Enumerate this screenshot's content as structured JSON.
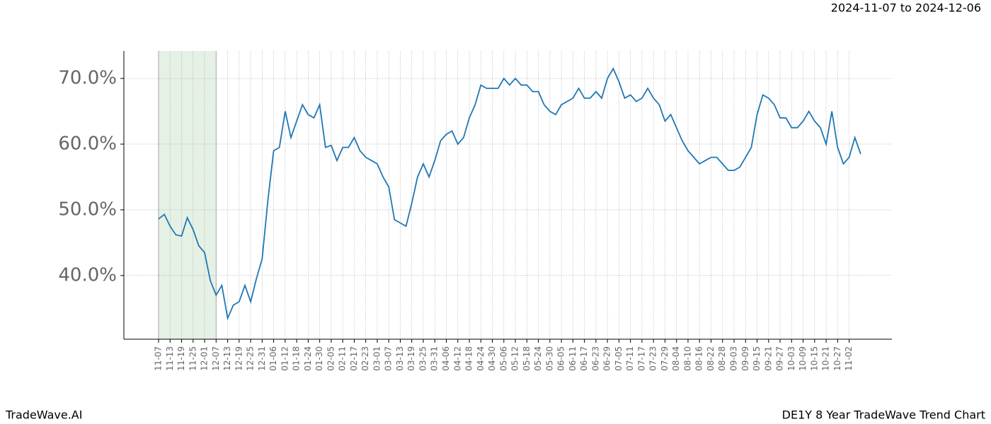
{
  "chart_data": {
    "type": "line",
    "header": "2024-11-07 to 2024-12-06",
    "footer_left": "TradeWave.AI",
    "footer_right": "DE1Y 8 Year TradeWave Trend Chart",
    "categories": [
      "11-07",
      null,
      "11-13",
      null,
      "11-19",
      null,
      "11-25",
      null,
      "12-01",
      null,
      "12-07",
      null,
      "12-13",
      null,
      "12-19",
      null,
      "12-25",
      null,
      "12-31",
      null,
      "01-06",
      null,
      "01-12",
      null,
      "01-18",
      null,
      "01-24",
      null,
      "01-30",
      null,
      "02-05",
      null,
      "02-11",
      null,
      "02-17",
      null,
      "02-23",
      null,
      "03-01",
      null,
      "03-07",
      null,
      "03-13",
      null,
      "03-19",
      null,
      "03-25",
      null,
      "03-31",
      null,
      "04-06",
      null,
      "04-12",
      null,
      "04-18",
      null,
      "04-24",
      null,
      "04-30",
      null,
      "05-06",
      null,
      "05-12",
      null,
      "05-18",
      null,
      "05-24",
      null,
      "05-30",
      null,
      "06-05",
      null,
      "06-11",
      null,
      "06-17",
      null,
      "06-23",
      null,
      "06-29",
      null,
      "07-05",
      null,
      "07-11",
      null,
      "07-17",
      null,
      "07-23",
      null,
      "07-29",
      null,
      "08-04",
      null,
      "08-10",
      null,
      "08-16",
      null,
      "08-22",
      null,
      "08-28",
      null,
      "09-03",
      null,
      "09-09",
      null,
      "09-15",
      null,
      "09-21",
      null,
      "09-27",
      null,
      "10-03",
      null,
      "10-09",
      null,
      "10-15",
      null,
      "10-21",
      null,
      "10-27",
      null,
      "11-02",
      null,
      null
    ],
    "values": [
      48.6,
      49.3,
      47.5,
      46.2,
      46.0,
      48.8,
      47.0,
      44.5,
      43.5,
      39.2,
      37.0,
      38.5,
      33.5,
      35.5,
      36.0,
      38.5,
      36.0,
      39.5,
      42.5,
      51.5,
      59.0,
      59.5,
      65.0,
      61.0,
      63.5,
      66.0,
      64.5,
      64.0,
      66.0,
      59.5,
      59.8,
      57.5,
      59.5,
      59.5,
      61.0,
      59.0,
      58.0,
      57.5,
      57.0,
      55.0,
      53.5,
      48.5,
      48.0,
      47.5,
      51.0,
      55.0,
      57.0,
      55.0,
      57.5,
      60.5,
      61.5,
      62.0,
      60.0,
      61.0,
      64.0,
      66.0,
      69.0,
      68.5,
      68.5,
      68.5,
      70.0,
      69.0,
      70.0,
      69.0,
      69.0,
      68.0,
      68.0,
      66.0,
      65.0,
      64.5,
      66.0,
      66.5,
      67.0,
      68.5,
      67.0,
      67.0,
      68.0,
      67.0,
      70.0,
      71.5,
      69.5,
      67.0,
      67.5,
      66.5,
      67.0,
      68.5,
      67.0,
      66.0,
      63.5,
      64.5,
      62.5,
      60.5,
      59.0,
      58.0,
      57.0,
      57.5,
      58.0,
      58.0,
      57.0,
      56.0,
      56.0,
      56.5,
      58.0,
      59.5,
      64.5,
      67.5,
      67.0,
      66.0,
      64.0,
      64.0,
      62.5,
      62.5,
      63.5,
      65.0,
      63.5,
      62.5,
      60.0,
      65.0,
      59.5,
      57.0,
      58.0,
      61.0,
      58.5
    ],
    "color": "#1f77b4",
    "shade": {
      "from": "11-07",
      "to": "12-07",
      "color": "#d5e8d4"
    },
    "ylim": [
      30.3,
      74.2
    ],
    "yticks": [
      {
        "value": 40,
        "label": "40.0%"
      },
      {
        "value": 50,
        "label": "50.0%"
      },
      {
        "value": 60,
        "label": "60.0%"
      },
      {
        "value": 70,
        "label": "70.0%"
      }
    ],
    "grid": true
  }
}
